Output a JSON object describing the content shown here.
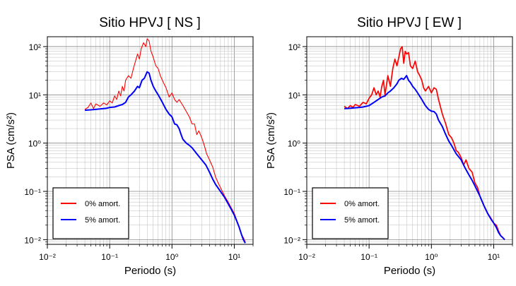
{
  "chart_data": [
    {
      "type": "line",
      "title": "Sitio HPVJ [ NS ]",
      "xlabel": "Periodo (s)",
      "ylabel": "PSA (cm/s²)",
      "xscale": "log",
      "yscale": "log",
      "xlim": [
        0.01,
        20
      ],
      "ylim": [
        0.008,
        160
      ],
      "x_ticks": [
        "10⁻²",
        "10⁻¹",
        "10⁰",
        "10¹"
      ],
      "y_ticks": [
        "10⁻²",
        "10⁻¹",
        "10⁰",
        "10¹",
        "10²"
      ],
      "grid": true,
      "legend_position": "bottom-left",
      "series": [
        {
          "name": "0% amort.",
          "color": "#ff0000",
          "points": [
            [
              0.04,
              5.0
            ],
            [
              0.045,
              5.5
            ],
            [
              0.05,
              6.8
            ],
            [
              0.055,
              5.2
            ],
            [
              0.06,
              6.5
            ],
            [
              0.07,
              5.8
            ],
            [
              0.08,
              6.8
            ],
            [
              0.09,
              6.2
            ],
            [
              0.1,
              7.5
            ],
            [
              0.11,
              6.8
            ],
            [
              0.12,
              9.5
            ],
            [
              0.13,
              8.0
            ],
            [
              0.14,
              12
            ],
            [
              0.15,
              9.5
            ],
            [
              0.16,
              15
            ],
            [
              0.17,
              12
            ],
            [
              0.18,
              20
            ],
            [
              0.2,
              25
            ],
            [
              0.22,
              22
            ],
            [
              0.24,
              35
            ],
            [
              0.26,
              50
            ],
            [
              0.28,
              70
            ],
            [
              0.3,
              55
            ],
            [
              0.32,
              90
            ],
            [
              0.35,
              120
            ],
            [
              0.38,
              100
            ],
            [
              0.4,
              145
            ],
            [
              0.43,
              130
            ],
            [
              0.46,
              80
            ],
            [
              0.5,
              60
            ],
            [
              0.55,
              40
            ],
            [
              0.6,
              35
            ],
            [
              0.65,
              25
            ],
            [
              0.7,
              20
            ],
            [
              0.8,
              14
            ],
            [
              0.9,
              9
            ],
            [
              1.0,
              11
            ],
            [
              1.1,
              8
            ],
            [
              1.2,
              7
            ],
            [
              1.3,
              8
            ],
            [
              1.5,
              6
            ],
            [
              1.7,
              4.5
            ],
            [
              1.9,
              3.5
            ],
            [
              2.1,
              2.5
            ],
            [
              2.3,
              2.5
            ],
            [
              2.5,
              1.5
            ],
            [
              2.7,
              1.8
            ],
            [
              3.0,
              1.3
            ],
            [
              3.3,
              0.9
            ],
            [
              3.6,
              0.6
            ],
            [
              4.0,
              0.45
            ],
            [
              4.5,
              0.32
            ],
            [
              5.0,
              0.2
            ],
            [
              5.5,
              0.15
            ],
            [
              6.0,
              0.12
            ],
            [
              7.0,
              0.08
            ],
            [
              8.0,
              0.06
            ],
            [
              9.0,
              0.045
            ],
            [
              10.0,
              0.035
            ],
            [
              11.0,
              0.025
            ],
            [
              12.0,
              0.018
            ],
            [
              13.0,
              0.013
            ],
            [
              14.0,
              0.011
            ],
            [
              15.0,
              0.009
            ]
          ]
        },
        {
          "name": "5% amort.",
          "color": "#0000ff",
          "points": [
            [
              0.04,
              4.8
            ],
            [
              0.05,
              4.9
            ],
            [
              0.06,
              5.0
            ],
            [
              0.07,
              5.1
            ],
            [
              0.08,
              5.2
            ],
            [
              0.09,
              5.3
            ],
            [
              0.1,
              5.5
            ],
            [
              0.12,
              5.6
            ],
            [
              0.14,
              6.0
            ],
            [
              0.16,
              6.3
            ],
            [
              0.18,
              7.0
            ],
            [
              0.2,
              9.0
            ],
            [
              0.22,
              10.0
            ],
            [
              0.25,
              12.0
            ],
            [
              0.28,
              15.0
            ],
            [
              0.3,
              14.0
            ],
            [
              0.33,
              20.0
            ],
            [
              0.36,
              22.0
            ],
            [
              0.4,
              30.0
            ],
            [
              0.43,
              28.0
            ],
            [
              0.46,
              20.0
            ],
            [
              0.5,
              15.0
            ],
            [
              0.55,
              12.0
            ],
            [
              0.6,
              10.0
            ],
            [
              0.7,
              7.0
            ],
            [
              0.8,
              5.0
            ],
            [
              0.9,
              4.0
            ],
            [
              1.0,
              3.5
            ],
            [
              1.1,
              2.5
            ],
            [
              1.2,
              2.4
            ],
            [
              1.3,
              2.0
            ],
            [
              1.4,
              1.5
            ],
            [
              1.5,
              1.2
            ],
            [
              1.7,
              1.0
            ],
            [
              1.9,
              0.9
            ],
            [
              2.1,
              0.8
            ],
            [
              2.5,
              0.6
            ],
            [
              3.0,
              0.45
            ],
            [
              3.5,
              0.35
            ],
            [
              4.0,
              0.25
            ],
            [
              4.5,
              0.18
            ],
            [
              5.0,
              0.14
            ],
            [
              6.0,
              0.1
            ],
            [
              7.0,
              0.075
            ],
            [
              8.0,
              0.055
            ],
            [
              9.0,
              0.042
            ],
            [
              10.0,
              0.032
            ],
            [
              11.0,
              0.024
            ],
            [
              12.0,
              0.018
            ],
            [
              13.0,
              0.013
            ],
            [
              14.0,
              0.01
            ],
            [
              15.0,
              0.0085
            ]
          ]
        }
      ]
    },
    {
      "type": "line",
      "title": "Sitio HPVJ [ EW ]",
      "xlabel": "Periodo (s)",
      "ylabel": "PSA (cm/s²)",
      "xscale": "log",
      "yscale": "log",
      "xlim": [
        0.01,
        20
      ],
      "ylim": [
        0.008,
        160
      ],
      "x_ticks": [
        "10⁻²",
        "10⁻¹",
        "10⁰",
        "10¹"
      ],
      "y_ticks": [
        "10⁻²",
        "10⁻¹",
        "10⁰",
        "10¹",
        "10²"
      ],
      "grid": true,
      "legend_position": "bottom-left",
      "series": [
        {
          "name": "0% amort.",
          "color": "#ff0000",
          "points": [
            [
              0.04,
              5.8
            ],
            [
              0.045,
              5.2
            ],
            [
              0.05,
              6.0
            ],
            [
              0.055,
              5.5
            ],
            [
              0.06,
              6.3
            ],
            [
              0.07,
              5.8
            ],
            [
              0.08,
              7.0
            ],
            [
              0.09,
              6.5
            ],
            [
              0.1,
              8.5
            ],
            [
              0.11,
              10.0
            ],
            [
              0.12,
              14.0
            ],
            [
              0.13,
              10.0
            ],
            [
              0.14,
              12.0
            ],
            [
              0.15,
              9.0
            ],
            [
              0.16,
              15.0
            ],
            [
              0.17,
              20.0
            ],
            [
              0.18,
              10.0
            ],
            [
              0.2,
              25.0
            ],
            [
              0.22,
              15.0
            ],
            [
              0.24,
              35.0
            ],
            [
              0.26,
              55.0
            ],
            [
              0.28,
              40.0
            ],
            [
              0.3,
              60.0
            ],
            [
              0.32,
              90.0
            ],
            [
              0.34,
              100.0
            ],
            [
              0.36,
              45.0
            ],
            [
              0.38,
              80.0
            ],
            [
              0.4,
              70.0
            ],
            [
              0.43,
              75.0
            ],
            [
              0.46,
              40.0
            ],
            [
              0.5,
              35.0
            ],
            [
              0.55,
              50.0
            ],
            [
              0.6,
              30.0
            ],
            [
              0.65,
              25.0
            ],
            [
              0.7,
              20.0
            ],
            [
              0.75,
              14.0
            ],
            [
              0.8,
              12.0
            ],
            [
              0.9,
              15.0
            ],
            [
              1.0,
              11.0
            ],
            [
              1.1,
              14.0
            ],
            [
              1.2,
              13.0
            ],
            [
              1.3,
              8.0
            ],
            [
              1.5,
              4.0
            ],
            [
              1.7,
              2.5
            ],
            [
              1.9,
              1.5
            ],
            [
              2.1,
              1.3
            ],
            [
              2.3,
              1.0
            ],
            [
              2.5,
              0.7
            ],
            [
              2.7,
              0.65
            ],
            [
              3.0,
              0.5
            ],
            [
              3.3,
              0.35
            ],
            [
              3.6,
              0.45
            ],
            [
              4.0,
              0.3
            ],
            [
              4.5,
              0.25
            ],
            [
              5.0,
              0.15
            ],
            [
              5.5,
              0.12
            ],
            [
              6.0,
              0.08
            ],
            [
              7.0,
              0.05
            ],
            [
              8.0,
              0.035
            ],
            [
              9.0,
              0.028
            ],
            [
              10.0,
              0.022
            ],
            [
              11.0,
              0.02
            ],
            [
              12.0,
              0.015
            ],
            [
              13.0,
              0.012
            ],
            [
              14.0,
              0.011
            ],
            [
              15.0,
              0.01
            ]
          ]
        },
        {
          "name": "5% amort.",
          "color": "#0000ff",
          "points": [
            [
              0.04,
              5.2
            ],
            [
              0.05,
              5.3
            ],
            [
              0.06,
              5.4
            ],
            [
              0.07,
              5.5
            ],
            [
              0.08,
              5.6
            ],
            [
              0.09,
              5.8
            ],
            [
              0.1,
              6.0
            ],
            [
              0.12,
              7.0
            ],
            [
              0.14,
              8.0
            ],
            [
              0.16,
              9.0
            ],
            [
              0.18,
              9.5
            ],
            [
              0.2,
              11.0
            ],
            [
              0.22,
              12.0
            ],
            [
              0.25,
              14.0
            ],
            [
              0.28,
              17.0
            ],
            [
              0.3,
              20.0
            ],
            [
              0.33,
              22.0
            ],
            [
              0.36,
              21.0
            ],
            [
              0.4,
              25.0
            ],
            [
              0.43,
              20.0
            ],
            [
              0.46,
              18.0
            ],
            [
              0.5,
              15.0
            ],
            [
              0.55,
              13.0
            ],
            [
              0.6,
              11.0
            ],
            [
              0.7,
              8.0
            ],
            [
              0.8,
              6.0
            ],
            [
              0.9,
              5.0
            ],
            [
              1.0,
              4.6
            ],
            [
              1.1,
              4.5
            ],
            [
              1.2,
              4.0
            ],
            [
              1.3,
              3.0
            ],
            [
              1.5,
              2.2
            ],
            [
              1.7,
              1.5
            ],
            [
              1.9,
              1.1
            ],
            [
              2.1,
              0.9
            ],
            [
              2.5,
              0.6
            ],
            [
              3.0,
              0.45
            ],
            [
              3.5,
              0.3
            ],
            [
              4.0,
              0.22
            ],
            [
              4.5,
              0.17
            ],
            [
              5.0,
              0.13
            ],
            [
              6.0,
              0.08
            ],
            [
              7.0,
              0.05
            ],
            [
              8.0,
              0.035
            ],
            [
              9.0,
              0.027
            ],
            [
              10.0,
              0.022
            ],
            [
              11.0,
              0.018
            ],
            [
              12.0,
              0.014
            ],
            [
              13.0,
              0.012
            ],
            [
              14.0,
              0.011
            ],
            [
              15.0,
              0.01
            ]
          ]
        }
      ]
    }
  ]
}
